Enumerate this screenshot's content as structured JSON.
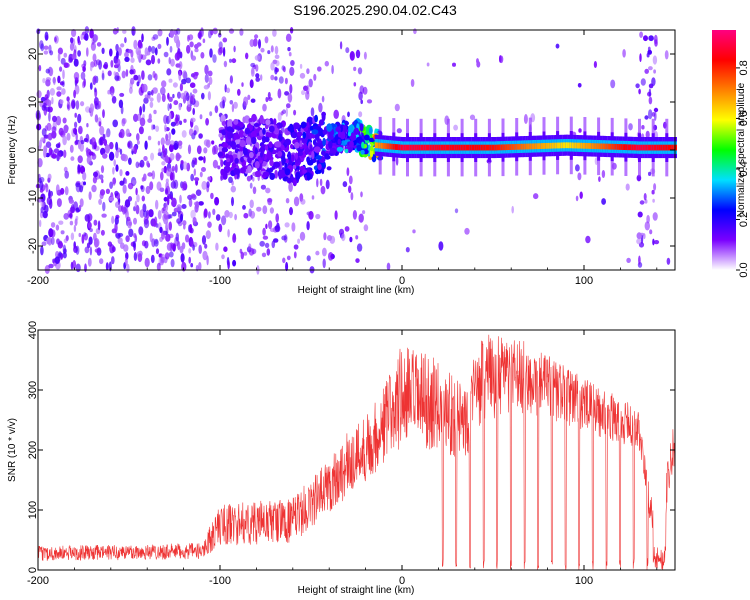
{
  "title": "S196.2025.290.04.02.C43",
  "chart_data": [
    {
      "type": "heatmap",
      "name": "spectrogram",
      "xlabel": "Height of straight line (km)",
      "ylabel": "Frequency (Hz)",
      "xlim": [
        -200,
        150
      ],
      "ylim": [
        -25,
        25
      ],
      "xticks": [
        -200,
        -100,
        0,
        100
      ],
      "yticks": [
        -20,
        -10,
        0,
        10,
        20
      ],
      "colorbar": {
        "label": "Normalized spectral amplitude",
        "range": [
          0.0,
          0.95
        ],
        "ticks": [
          0.0,
          0.2,
          0.4,
          0.6,
          0.8
        ],
        "colors": [
          "#ffffff",
          "#7a00ff",
          "#0000ff",
          "#00e0ff",
          "#00ff00",
          "#ffff00",
          "#ff8000",
          "#ff0000",
          "#ff0080"
        ]
      },
      "carrier": [
        {
          "x": -100,
          "freq": 0.0,
          "amp": 0.2
        },
        {
          "x": -80,
          "freq": 1.0,
          "amp": 0.22
        },
        {
          "x": -60,
          "freq": -1.0,
          "amp": 0.25
        },
        {
          "x": -40,
          "freq": 2.0,
          "amp": 0.35
        },
        {
          "x": -25,
          "freq": 3.0,
          "amp": 0.45
        },
        {
          "x": -15,
          "freq": 1.0,
          "amp": 0.75
        },
        {
          "x": 0,
          "freq": 0.5,
          "amp": 0.9
        },
        {
          "x": 50,
          "freq": 0.5,
          "amp": 0.85
        },
        {
          "x": 90,
          "freq": 1.0,
          "amp": 0.7
        },
        {
          "x": 130,
          "freq": 0.5,
          "amp": 0.9
        },
        {
          "x": 150,
          "freq": 0.5,
          "amp": 0.85
        }
      ]
    },
    {
      "type": "line",
      "name": "snr",
      "xlabel": "Height of straight line (km)",
      "ylabel": "SNR (10 * v/v)",
      "xlim": [
        -200,
        150
      ],
      "ylim": [
        0,
        400
      ],
      "xticks": [
        -200,
        -100,
        0,
        100
      ],
      "yticks": [
        0,
        100,
        200,
        300,
        400
      ],
      "color": "#ee3333",
      "envelope": [
        {
          "x": -200,
          "base": 15,
          "peak": 40
        },
        {
          "x": -110,
          "base": 18,
          "peak": 45
        },
        {
          "x": -100,
          "base": 40,
          "peak": 110
        },
        {
          "x": -60,
          "base": 45,
          "peak": 120
        },
        {
          "x": -45,
          "base": 80,
          "peak": 170
        },
        {
          "x": -30,
          "base": 120,
          "peak": 230
        },
        {
          "x": -15,
          "base": 160,
          "peak": 280
        },
        {
          "x": 0,
          "base": 200,
          "peak": 380
        },
        {
          "x": 20,
          "base": 200,
          "peak": 350
        },
        {
          "x": 35,
          "base": 180,
          "peak": 320
        },
        {
          "x": 45,
          "base": 250,
          "peak": 395
        },
        {
          "x": 70,
          "base": 260,
          "peak": 380
        },
        {
          "x": 100,
          "base": 230,
          "peak": 320
        },
        {
          "x": 130,
          "base": 200,
          "peak": 270
        },
        {
          "x": 140,
          "base": 5,
          "peak": 60
        },
        {
          "x": 150,
          "base": 180,
          "peak": 260
        }
      ],
      "dropout_start": 22,
      "dropout_period": 7.5
    }
  ]
}
